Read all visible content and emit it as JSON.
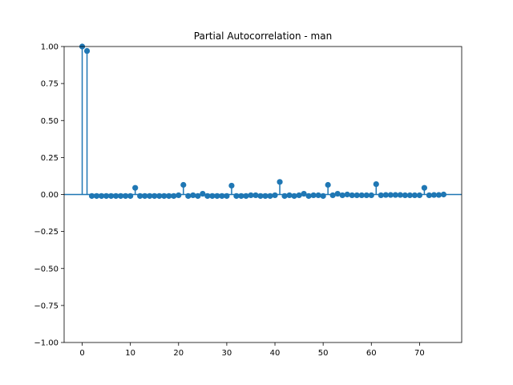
{
  "chart_data": {
    "type": "stem",
    "title": "Partial Autocorrelation - man",
    "xlabel": "",
    "ylabel": "",
    "xlim": [
      -3.75,
      78.75
    ],
    "ylim": [
      -1.0,
      1.0
    ],
    "xticks": [
      0,
      10,
      20,
      30,
      40,
      50,
      60,
      70
    ],
    "yticks": [
      -1.0,
      -0.75,
      -0.5,
      -0.25,
      0.0,
      0.25,
      0.5,
      0.75,
      1.0
    ],
    "ytick_labels": [
      "−1.00",
      "−0.75",
      "−0.50",
      "−0.25",
      "0.00",
      "0.25",
      "0.50",
      "0.75",
      "1.00"
    ],
    "xtick_labels": [
      "0",
      "10",
      "20",
      "30",
      "40",
      "50",
      "60",
      "70"
    ],
    "grid": false,
    "color": "#1f77b4",
    "baseline": 0.0,
    "lags": [
      0,
      1,
      2,
      3,
      4,
      5,
      6,
      7,
      8,
      9,
      10,
      11,
      12,
      13,
      14,
      15,
      16,
      17,
      18,
      19,
      20,
      21,
      22,
      23,
      24,
      25,
      26,
      27,
      28,
      29,
      30,
      31,
      32,
      33,
      34,
      35,
      36,
      37,
      38,
      39,
      40,
      41,
      42,
      43,
      44,
      45,
      46,
      47,
      48,
      49,
      50,
      51,
      52,
      53,
      54,
      55,
      56,
      57,
      58,
      59,
      60,
      61,
      62,
      63,
      64,
      65,
      66,
      67,
      68,
      69,
      70,
      71,
      72,
      73,
      74,
      75
    ],
    "values": [
      1.0,
      0.97,
      -0.01,
      -0.01,
      -0.01,
      -0.01,
      -0.01,
      -0.01,
      -0.01,
      -0.01,
      -0.01,
      0.045,
      -0.01,
      -0.01,
      -0.01,
      -0.01,
      -0.01,
      -0.01,
      -0.01,
      -0.01,
      -0.005,
      0.065,
      -0.01,
      -0.005,
      -0.01,
      0.005,
      -0.01,
      -0.01,
      -0.01,
      -0.01,
      -0.01,
      0.06,
      -0.01,
      -0.01,
      -0.01,
      -0.005,
      -0.005,
      -0.01,
      -0.01,
      -0.01,
      -0.005,
      0.085,
      -0.01,
      -0.005,
      -0.01,
      -0.005,
      0.005,
      -0.01,
      -0.005,
      -0.005,
      -0.01,
      0.065,
      -0.005,
      0.005,
      -0.005,
      0.0,
      -0.005,
      -0.005,
      -0.005,
      -0.005,
      -0.005,
      0.07,
      -0.005,
      -0.003,
      -0.003,
      -0.003,
      -0.003,
      -0.005,
      -0.005,
      -0.005,
      -0.005,
      0.045,
      -0.005,
      -0.003,
      -0.003,
      0.0
    ]
  }
}
